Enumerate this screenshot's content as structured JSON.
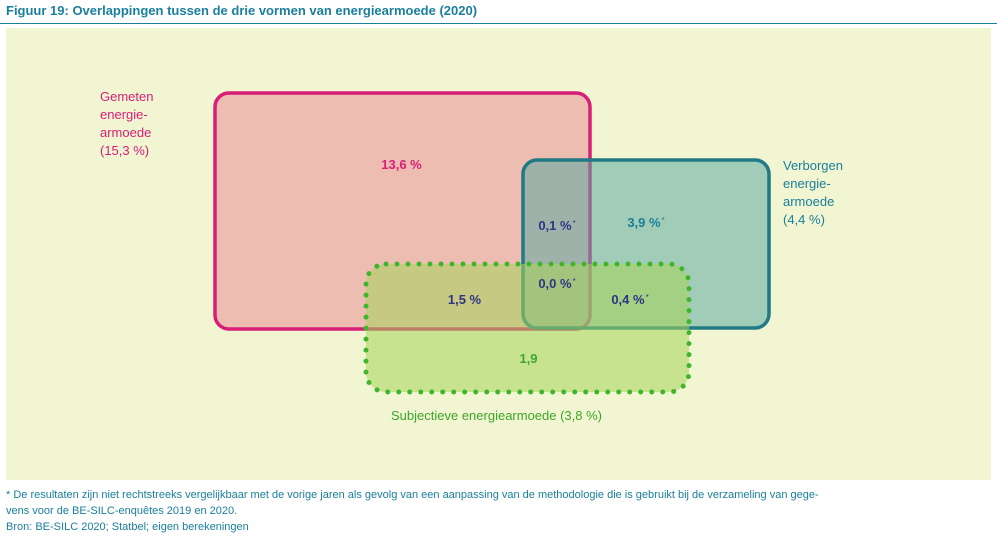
{
  "figure": {
    "title": "Figuur 19: Overlappingen tussen de drie vormen van energiearmoede (2020)"
  },
  "sets": {
    "measured": {
      "label_lines": [
        "Gemeten",
        "energie-",
        "armoede",
        "(15,3 %)"
      ],
      "color": "#d81e78",
      "fill": "#edbdb1"
    },
    "hidden": {
      "label_lines": [
        "Verborgen",
        "energie-",
        "armoede",
        "(4,4 %)"
      ],
      "color": "#1f7a84",
      "fill": "#a2c9b7"
    },
    "subjective": {
      "label": "Subjectieve energiearmoede (3,8 %)",
      "color": "#3fb52c",
      "fill": "#c4e18a"
    }
  },
  "regions": {
    "measured_only": {
      "value": "13,6 %",
      "asterisk": ""
    },
    "measured_hidden": {
      "value": "0,1 %",
      "asterisk": "*"
    },
    "hidden_only": {
      "value": "3,9 %",
      "asterisk": "*"
    },
    "measured_subjective": {
      "value": "1,5 %",
      "asterisk": ""
    },
    "all_three": {
      "value": "0,0 %",
      "asterisk": "*"
    },
    "hidden_subjective": {
      "value": "0,4 %",
      "asterisk": "*"
    },
    "subjective_only": {
      "value": "1,9",
      "asterisk": ""
    }
  },
  "footer": {
    "note_lines": [
      "* De resultaten zijn niet rechtstreeks vergelijkbaar met de vorige jaren als gevolg van een aanpassing van de methodologie die is gebruikt bij de verzameling van gege-",
      "vens voor de BE-SILC-enquêtes 2019 en 2020."
    ],
    "source": "Bron: BE-SILC 2020; Statbel; eigen berekeningen"
  }
}
